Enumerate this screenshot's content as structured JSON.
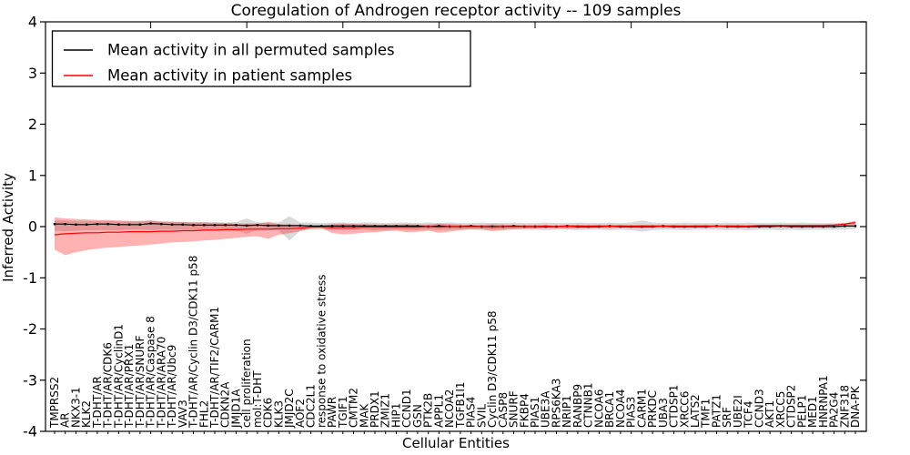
{
  "chart_data": {
    "type": "line",
    "title": "Coregulation of Androgen receptor activity -- 109 samples",
    "xlabel": "Cellular Entities",
    "ylabel": "Inferred Activity",
    "ylim": [
      -4,
      4
    ],
    "yticks": [
      4,
      3,
      2,
      1,
      0,
      -1,
      -2,
      -3,
      -4
    ],
    "grid": false,
    "legend_position": "upper left",
    "frame_color": "#000000",
    "background_color": "#ffffff",
    "categories": [
      "TMPRSS2",
      "AR",
      "NKX3-1",
      "KLK2",
      "T-DHT/AR",
      "T-DHT/AR/CDK6",
      "T-DHT/AR/CyclinD1",
      "T-DHT/AR/PRX1",
      "T-DHT/AR/SNURF",
      "T-DHT/AR/Caspase 8",
      "T-DHT/AR/ARA70",
      "T-DHT/AR/Ubc9",
      "VAV3",
      "T-DHT/AR/Cyclin D3/CDK11 p58",
      "FHL2",
      "T-DHT/AR/TIF2/CARM1",
      "CDKN2A",
      "JMJD1A",
      "cell proliferation",
      "mol:T-DHT",
      "CDK6",
      "KLK3",
      "JMJD2C",
      "AOF2",
      "CDC2L1",
      "response to oxidative stress",
      "PAWR",
      "TGIF1",
      "CMTM2",
      "MAK",
      "PRDX1",
      "ZMIZ1",
      "HIP1",
      "CCND1",
      "GSN",
      "PTK2B",
      "APPL1",
      "NCOA2",
      "TGFB1I1",
      "PIAS4",
      "SVIL",
      "Cyclin D3/CDK11 p58",
      "CASP8",
      "SNURF",
      "FKBP4",
      "PIAS1",
      "UBE3A",
      "RPS6KA3",
      "NRIP1",
      "RANBP9",
      "CTNNB1",
      "NCOA6",
      "BRCA1",
      "NCOA4",
      "PIAS3",
      "CARM1",
      "PRKDC",
      "UBA3",
      "CTDSP1",
      "XRCC6",
      "LATS2",
      "TMF1",
      "PATZ1",
      "SRF",
      "UBE2I",
      "TCF4",
      "CCND3",
      "AKT1",
      "XRCC5",
      "CTDSP2",
      "PELP1",
      "MED1",
      "HNRNPA1",
      "PA2G4",
      "ZNF318",
      "DNA-PK"
    ],
    "series": [
      {
        "name": "Mean activity in all permuted samples",
        "color": "#000000",
        "band_color": "rgba(130,130,130,0.30)",
        "markers": true,
        "values": [
          0.05,
          0.05,
          0.04,
          0.04,
          0.05,
          0.05,
          0.04,
          0.04,
          0.04,
          0.06,
          0.05,
          0.04,
          0.04,
          0.03,
          0.03,
          0.03,
          0.03,
          0.03,
          0.02,
          0.03,
          0.02,
          0.02,
          0.02,
          0.02,
          0.01,
          0.01,
          0.01,
          0.01,
          0.01,
          0.01,
          0.01,
          0.01,
          0.01,
          0.01,
          0.01,
          0.0,
          0.01,
          0.0,
          0.0,
          0.01,
          0.0,
          0.0,
          0.0,
          0.01,
          0.0,
          0.0,
          0.0,
          0.0,
          0.01,
          0.0,
          0.0,
          0.0,
          0.01,
          0.0,
          0.0,
          0.0,
          0.0,
          0.01,
          0.0,
          0.0,
          0.0,
          0.0,
          0.01,
          0.0,
          0.0,
          0.0,
          0.0,
          0.0,
          0.01,
          0.0,
          0.0,
          0.0,
          0.0,
          0.0,
          0.01,
          0.01
        ],
        "band_upper": [
          0.12,
          0.12,
          0.11,
          0.11,
          0.11,
          0.11,
          0.1,
          0.1,
          0.1,
          0.12,
          0.1,
          0.1,
          0.09,
          0.09,
          0.09,
          0.09,
          0.08,
          0.09,
          0.16,
          0.08,
          0.08,
          0.08,
          0.2,
          0.08,
          0.08,
          0.07,
          0.08,
          0.08,
          0.07,
          0.08,
          0.08,
          0.07,
          0.08,
          0.08,
          0.07,
          0.08,
          0.07,
          0.08,
          0.07,
          0.07,
          0.08,
          0.07,
          0.07,
          0.08,
          0.07,
          0.07,
          0.08,
          0.07,
          0.07,
          0.08,
          0.07,
          0.07,
          0.08,
          0.07,
          0.08,
          0.12,
          0.08,
          0.07,
          0.07,
          0.08,
          0.07,
          0.07,
          0.07,
          0.08,
          0.07,
          0.08,
          0.07,
          0.07,
          0.08,
          0.07,
          0.08,
          0.07,
          0.07,
          0.07,
          0.07,
          0.07
        ],
        "band_lower": [
          -0.08,
          -0.09,
          -0.08,
          -0.07,
          -0.07,
          -0.07,
          -0.07,
          -0.06,
          -0.06,
          -0.07,
          -0.06,
          -0.06,
          -0.06,
          -0.06,
          -0.06,
          -0.06,
          -0.06,
          -0.07,
          -0.14,
          -0.07,
          -0.07,
          -0.08,
          -0.27,
          -0.08,
          -0.06,
          -0.06,
          -0.07,
          -0.07,
          -0.07,
          -0.06,
          -0.08,
          -0.07,
          -0.06,
          -0.07,
          -0.07,
          -0.06,
          -0.07,
          -0.06,
          -0.06,
          -0.06,
          -0.07,
          -0.06,
          -0.06,
          -0.06,
          -0.06,
          -0.06,
          -0.07,
          -0.06,
          -0.06,
          -0.07,
          -0.06,
          -0.06,
          -0.07,
          -0.06,
          -0.07,
          -0.1,
          -0.07,
          -0.06,
          -0.06,
          -0.07,
          -0.06,
          -0.06,
          -0.06,
          -0.07,
          -0.06,
          -0.07,
          -0.06,
          -0.06,
          -0.07,
          -0.06,
          -0.07,
          -0.06,
          -0.06,
          -0.06,
          -0.06,
          -0.05
        ]
      },
      {
        "name": "Mean activity in patient samples",
        "color": "#ff0000",
        "band_color": "rgba(255,0,0,0.30)",
        "markers": false,
        "values": [
          -0.16,
          -0.14,
          -0.13,
          -0.12,
          -0.12,
          -0.11,
          -0.11,
          -0.1,
          -0.1,
          -0.1,
          -0.09,
          -0.09,
          -0.08,
          -0.08,
          -0.07,
          -0.07,
          -0.06,
          -0.06,
          -0.05,
          -0.05,
          -0.05,
          -0.04,
          -0.04,
          -0.03,
          -0.01,
          -0.01,
          -0.02,
          -0.02,
          -0.02,
          -0.01,
          -0.01,
          -0.01,
          -0.01,
          -0.01,
          -0.01,
          0.0,
          -0.01,
          0.0,
          0.0,
          0.0,
          0.0,
          -0.01,
          0.0,
          0.0,
          0.0,
          0.0,
          0.01,
          0.0,
          0.01,
          0.01,
          0.01,
          0.01,
          0.01,
          0.01,
          0.01,
          0.01,
          0.01,
          0.01,
          0.01,
          0.01,
          0.01,
          0.01,
          0.01,
          0.01,
          0.01,
          0.01,
          0.02,
          0.02,
          0.02,
          0.02,
          0.02,
          0.02,
          0.02,
          0.03,
          0.05,
          0.08
        ],
        "band_upper": [
          0.18,
          0.16,
          0.15,
          0.14,
          0.13,
          0.13,
          0.12,
          0.11,
          0.11,
          0.12,
          0.1,
          0.09,
          0.09,
          0.08,
          0.08,
          0.07,
          0.07,
          0.06,
          0.06,
          0.06,
          0.09,
          0.05,
          0.04,
          0.03,
          0.02,
          0.01,
          0.05,
          0.06,
          0.05,
          0.05,
          0.04,
          0.04,
          0.04,
          0.05,
          0.04,
          0.04,
          0.06,
          0.05,
          0.04,
          0.03,
          0.03,
          0.05,
          0.04,
          0.03,
          0.03,
          0.03,
          0.03,
          0.02,
          0.03,
          0.03,
          0.02,
          0.03,
          0.02,
          0.03,
          0.02,
          0.03,
          0.03,
          0.02,
          0.03,
          0.02,
          0.03,
          0.03,
          0.02,
          0.03,
          0.03,
          0.02,
          0.03,
          0.03,
          0.03,
          0.03,
          0.03,
          0.04,
          0.04,
          0.05,
          0.07,
          0.11
        ],
        "band_lower": [
          -0.45,
          -0.56,
          -0.5,
          -0.46,
          -0.43,
          -0.41,
          -0.4,
          -0.38,
          -0.37,
          -0.35,
          -0.33,
          -0.31,
          -0.3,
          -0.29,
          -0.27,
          -0.26,
          -0.24,
          -0.22,
          -0.2,
          -0.19,
          -0.24,
          -0.16,
          -0.13,
          -0.09,
          -0.03,
          -0.02,
          -0.13,
          -0.15,
          -0.14,
          -0.12,
          -0.11,
          -0.09,
          -0.08,
          -0.11,
          -0.1,
          -0.08,
          -0.12,
          -0.1,
          -0.07,
          -0.05,
          -0.05,
          -0.09,
          -0.07,
          -0.05,
          -0.04,
          -0.04,
          -0.03,
          -0.03,
          -0.04,
          -0.03,
          -0.03,
          -0.02,
          -0.03,
          -0.02,
          -0.02,
          -0.03,
          -0.02,
          -0.02,
          -0.02,
          -0.02,
          -0.01,
          -0.02,
          -0.01,
          -0.01,
          -0.02,
          -0.01,
          -0.01,
          -0.01,
          -0.01,
          -0.01,
          -0.01,
          -0.01,
          0.0,
          0.0,
          0.01,
          0.04
        ]
      }
    ]
  }
}
